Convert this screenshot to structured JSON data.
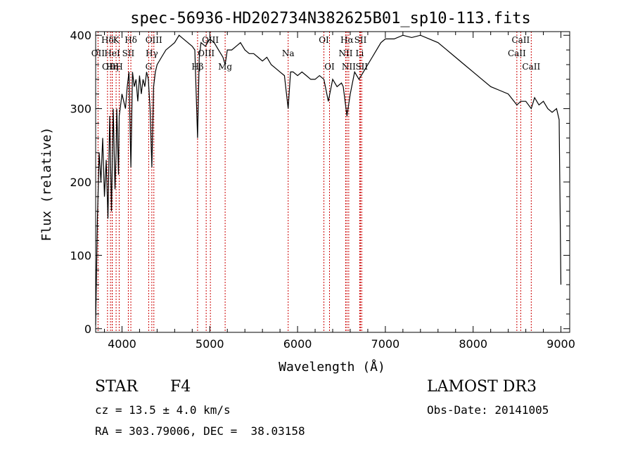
{
  "chart_data": {
    "type": "line",
    "title": "spec-56936-HD202734N382625B01_sp10-113.fits",
    "xlabel": "Wavelength (Å)",
    "ylabel": "Flux (relative)",
    "xlim": [
      3700,
      9100
    ],
    "ylim": [
      -5,
      405
    ],
    "xticks": [
      4000,
      5000,
      6000,
      7000,
      8000,
      9000
    ],
    "yticks": [
      0,
      100,
      200,
      300,
      400
    ],
    "grid": false,
    "line_color": "#000000",
    "marker_color": "#cc0000",
    "series": [
      {
        "x": [
          3700,
          3720,
          3740,
          3760,
          3780,
          3800,
          3820,
          3840,
          3860,
          3880,
          3900,
          3920,
          3933,
          3940,
          3960,
          3968,
          3980,
          4000,
          4020,
          4040,
          4060,
          4080,
          4101,
          4120,
          4140,
          4160,
          4180,
          4200,
          4220,
          4240,
          4260,
          4280,
          4300,
          4320,
          4340,
          4360,
          4380,
          4400,
          4450,
          4500,
          4550,
          4600,
          4650,
          4700,
          4750,
          4800,
          4830,
          4861,
          4880,
          4900,
          4950,
          5000,
          5050,
          5100,
          5150,
          5175,
          5200,
          5250,
          5300,
          5350,
          5400,
          5450,
          5500,
          5550,
          5600,
          5650,
          5700,
          5750,
          5800,
          5850,
          5893,
          5920,
          5950,
          6000,
          6050,
          6100,
          6150,
          6200,
          6250,
          6300,
          6350,
          6400,
          6450,
          6500,
          6520,
          6563,
          6600,
          6650,
          6700,
          6750,
          6800,
          6850,
          6900,
          6950,
          7000,
          7100,
          7200,
          7300,
          7400,
          7500,
          7600,
          7700,
          7800,
          7900,
          8000,
          8100,
          8200,
          8300,
          8400,
          8498,
          8542,
          8600,
          8662,
          8700,
          8750,
          8800,
          8850,
          8900,
          8950,
          8980,
          9000
        ],
        "values": [
          5,
          150,
          240,
          200,
          260,
          180,
          230,
          150,
          290,
          160,
          300,
          190,
          240,
          300,
          210,
          290,
          300,
          320,
          310,
          300,
          330,
          350,
          220,
          350,
          330,
          340,
          310,
          345,
          320,
          340,
          330,
          350,
          340,
          300,
          220,
          330,
          350,
          360,
          370,
          380,
          385,
          390,
          400,
          395,
          390,
          385,
          380,
          260,
          370,
          390,
          385,
          395,
          390,
          380,
          370,
          360,
          380,
          380,
          385,
          390,
          380,
          375,
          375,
          370,
          365,
          370,
          360,
          355,
          350,
          345,
          300,
          350,
          350,
          345,
          350,
          345,
          340,
          340,
          345,
          340,
          310,
          340,
          330,
          335,
          330,
          290,
          320,
          350,
          340,
          350,
          360,
          370,
          380,
          390,
          395,
          395,
          400,
          397,
          400,
          395,
          390,
          380,
          370,
          360,
          350,
          340,
          330,
          325,
          320,
          305,
          310,
          310,
          300,
          315,
          305,
          310,
          300,
          295,
          300,
          285,
          60
        ]
      }
    ],
    "lines": [
      {
        "label": "Hδ",
        "x": 3835,
        "row": 0
      },
      {
        "label": "K",
        "x": 3933,
        "row": 0
      },
      {
        "label": "Hδ",
        "x": 4101,
        "row": 0
      },
      {
        "label": "OIII",
        "x": 4363,
        "row": 0
      },
      {
        "label": "OIII",
        "x": 5007,
        "row": 0
      },
      {
        "label": "OI",
        "x": 6300,
        "row": 0
      },
      {
        "label": "Hα",
        "x": 6563,
        "row": 0
      },
      {
        "label": "SII",
        "x": 6717,
        "row": 0
      },
      {
        "label": "CaII",
        "x": 8542,
        "row": 0
      },
      {
        "label": "OII",
        "x": 3727,
        "row": 1
      },
      {
        "label": "HeI",
        "x": 3889,
        "row": 1
      },
      {
        "label": "SII",
        "x": 4072,
        "row": 1
      },
      {
        "label": "Hγ",
        "x": 4340,
        "row": 1
      },
      {
        "label": "OIII",
        "x": 4959,
        "row": 1
      },
      {
        "label": "Na",
        "x": 5893,
        "row": 1
      },
      {
        "label": "NII",
        "x": 6548,
        "row": 1
      },
      {
        "label": "Li",
        "x": 6708,
        "row": 1
      },
      {
        "label": "CaII",
        "x": 8498,
        "row": 1
      },
      {
        "label": "OIII",
        "x": 3869,
        "row": 2
      },
      {
        "label": "Hη",
        "x": 3889,
        "row": 2
      },
      {
        "label": "H",
        "x": 3968,
        "row": 2
      },
      {
        "label": "G",
        "x": 4304,
        "row": 2
      },
      {
        "label": "Hβ",
        "x": 4861,
        "row": 2
      },
      {
        "label": "Mg",
        "x": 5175,
        "row": 2
      },
      {
        "label": "OI",
        "x": 6364,
        "row": 2
      },
      {
        "label": "NII",
        "x": 6583,
        "row": 2
      },
      {
        "label": "SII",
        "x": 6731,
        "row": 2
      },
      {
        "label": "CaII",
        "x": 8662,
        "row": 2
      }
    ]
  },
  "info": {
    "object_type": "STAR",
    "subclass": "F4",
    "cz": "cz = 13.5 ± 4.0 km/s",
    "coords": "RA = 303.79006, DEC =  38.03158",
    "survey": "LAMOST DR3",
    "obs_date": "Obs-Date: 20141005"
  }
}
